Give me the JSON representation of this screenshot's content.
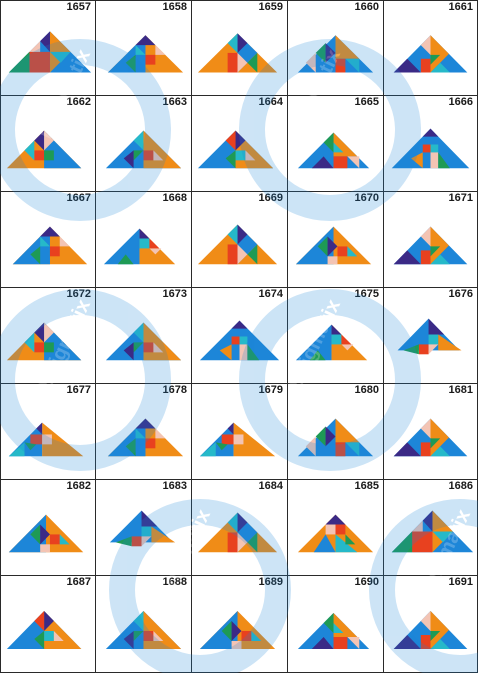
{
  "puzzles": [
    {
      "number": "1657",
      "variant": 0
    },
    {
      "number": "1658",
      "variant": 1
    },
    {
      "number": "1659",
      "variant": 2
    },
    {
      "number": "1660",
      "variant": 3
    },
    {
      "number": "1661",
      "variant": 4
    },
    {
      "number": "1662",
      "variant": 5
    },
    {
      "number": "1663",
      "variant": 6
    },
    {
      "number": "1664",
      "variant": 7
    },
    {
      "number": "1665",
      "variant": 8
    },
    {
      "number": "1666",
      "variant": 9
    },
    {
      "number": "1667",
      "variant": 1
    },
    {
      "number": "1668",
      "variant": 10
    },
    {
      "number": "1669",
      "variant": 2
    },
    {
      "number": "1670",
      "variant": 11
    },
    {
      "number": "1671",
      "variant": 4
    },
    {
      "number": "1672",
      "variant": 5
    },
    {
      "number": "1673",
      "variant": 6
    },
    {
      "number": "1674",
      "variant": 9
    },
    {
      "number": "1675",
      "variant": 10
    },
    {
      "number": "1676",
      "variant": 12
    },
    {
      "number": "1677",
      "variant": 13
    },
    {
      "number": "1678",
      "variant": 1
    },
    {
      "number": "1679",
      "variant": 13
    },
    {
      "number": "1680",
      "variant": 3
    },
    {
      "number": "1681",
      "variant": 4
    },
    {
      "number": "1682",
      "variant": 11
    },
    {
      "number": "1683",
      "variant": 12
    },
    {
      "number": "1684",
      "variant": 2
    },
    {
      "number": "1685",
      "variant": 14
    },
    {
      "number": "1686",
      "variant": 0
    },
    {
      "number": "1687",
      "variant": 7
    },
    {
      "number": "1688",
      "variant": 6
    },
    {
      "number": "1689",
      "variant": 11
    },
    {
      "number": "1690",
      "variant": 8
    },
    {
      "number": "1691",
      "variant": 4
    }
  ],
  "watermark": {
    "text": "Enigmatix"
  },
  "colors": {
    "blue": "#1d86d8",
    "orange": "#f08c17",
    "navy": "#3b2a86",
    "red": "#e8411f",
    "green": "#1e9a55",
    "cyan": "#26b9c9",
    "pink": "#f3c4b4",
    "grid_line": "#2a2a2a",
    "watermark_circle": "#d4e6f5"
  }
}
